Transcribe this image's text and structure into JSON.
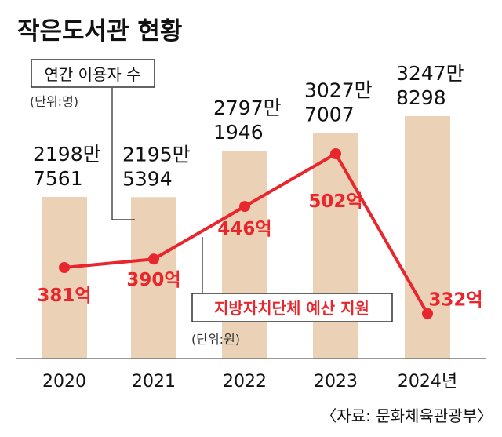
{
  "chart_data": {
    "type": "bar",
    "title": "작은도서관 현황",
    "categories": [
      "2020",
      "2021",
      "2022",
      "2023",
      "2024년"
    ],
    "series": [
      {
        "name": "연간 이용자 수",
        "unit_label": "(단위:명)",
        "values": [
          21987561,
          21955394,
          27971946,
          30277007,
          32478298
        ],
        "labels": [
          [
            "2198만",
            "7561"
          ],
          [
            "2195만",
            "5394"
          ],
          [
            "2797만",
            "1946"
          ],
          [
            "3027만",
            "7007"
          ],
          [
            "3247만",
            "8298"
          ]
        ],
        "color": "#ebd1b6"
      },
      {
        "name": "지방자치단체 예산 지원",
        "unit_label": "(단위:원)",
        "type": "line",
        "values": [
          381,
          390,
          446,
          502,
          332
        ],
        "labels": [
          "381억",
          "390억",
          "446억",
          "502억",
          "332억"
        ],
        "color": "#e8262d"
      }
    ],
    "source": "〈자료: 문화체육관광부〉"
  }
}
